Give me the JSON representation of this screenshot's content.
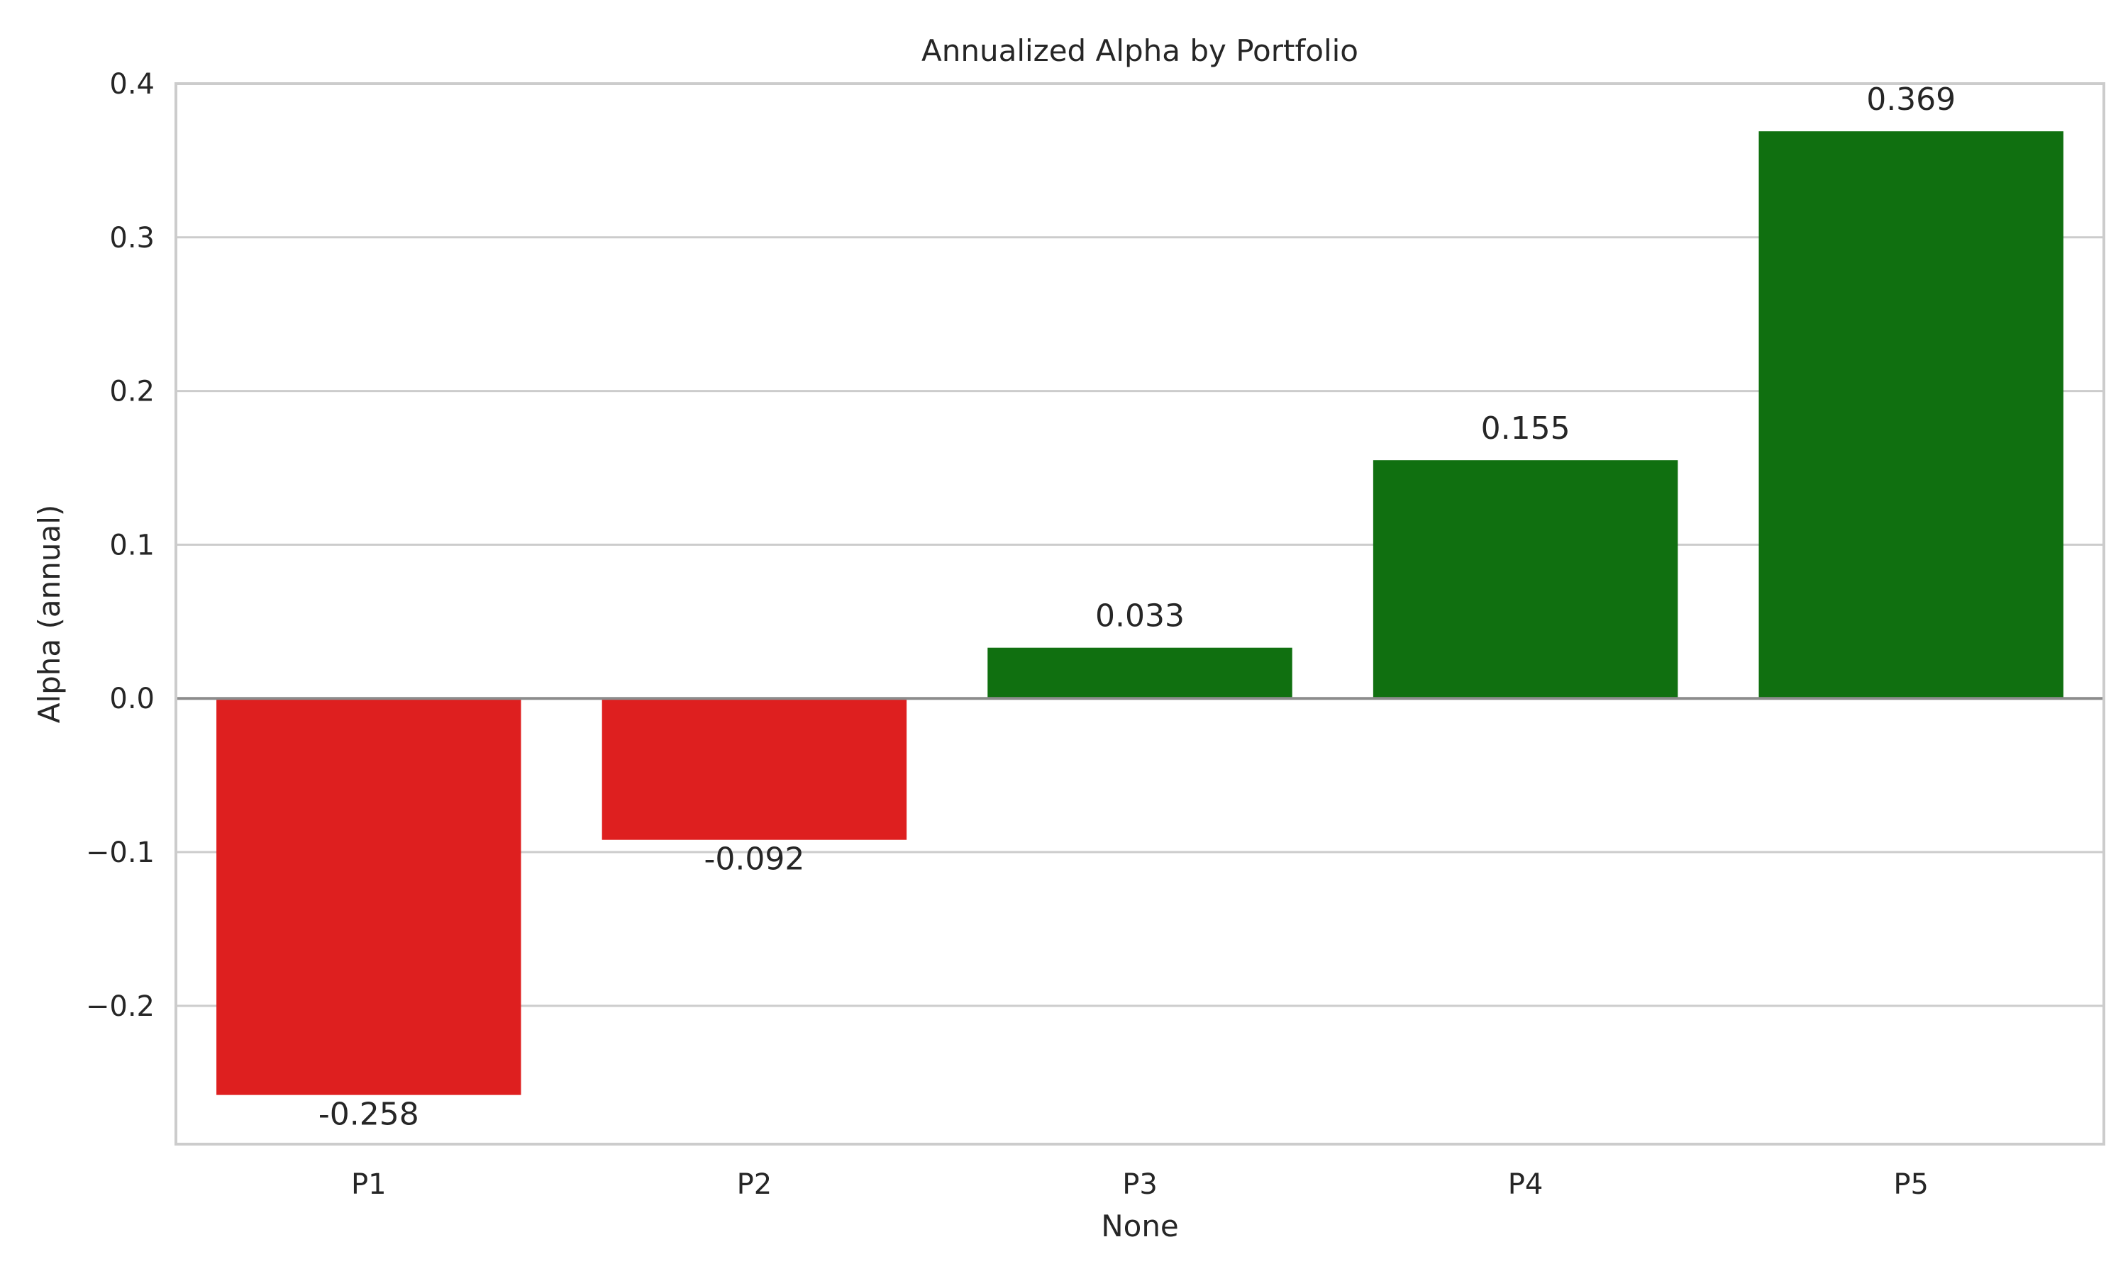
{
  "chart_data": {
    "type": "bar",
    "title": "Annualized Alpha by Portfolio",
    "xlabel": "None",
    "ylabel": "Alpha (annual)",
    "categories": [
      "P1",
      "P2",
      "P3",
      "P4",
      "P5"
    ],
    "values": [
      -0.258,
      -0.092,
      0.033,
      0.155,
      0.369
    ],
    "value_labels": [
      "-0.258",
      "-0.092",
      "0.033",
      "0.155",
      "0.369"
    ],
    "ylim": [
      -0.29,
      0.4
    ],
    "yticks": [
      -0.2,
      -0.1,
      0.0,
      0.1,
      0.2,
      0.3,
      0.4
    ],
    "ytick_labels": [
      "−0.2",
      "−0.1",
      "0.0",
      "0.1",
      "0.2",
      "0.3",
      "0.4"
    ],
    "grid": true,
    "zero_line": true,
    "colors": {
      "positive": "#107010",
      "negative": "#de1f1f",
      "text": "#262626",
      "grid": "#cccccc",
      "zero_line": "#8c8c8c"
    }
  }
}
